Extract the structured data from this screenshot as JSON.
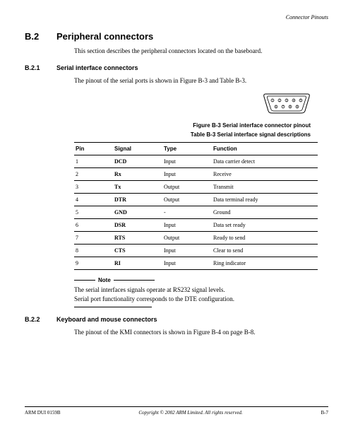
{
  "header": {
    "section_name": "Connector Pinouts"
  },
  "section": {
    "number": "B.2",
    "title": "Peripheral connectors",
    "intro": "This section describes the peripheral connectors located on the baseboard."
  },
  "sub1": {
    "number": "B.2.1",
    "title": "Serial interface connectors",
    "intro": "The pinout of the serial ports is shown in Figure B-3 and Table B-3.",
    "figure_caption": "Figure B-3 Serial interface connector pinout",
    "table_caption": "Table B-3 Serial interface signal descriptions",
    "table": {
      "columns": [
        "Pin",
        "Signal",
        "Type",
        "Function"
      ],
      "rows": [
        [
          "1",
          "DCD",
          "Input",
          "Data carrier detect"
        ],
        [
          "2",
          "Rx",
          "Input",
          "Receive"
        ],
        [
          "3",
          "Tx",
          "Output",
          "Transmit"
        ],
        [
          "4",
          "DTR",
          "Output",
          "Data terminal ready"
        ],
        [
          "5",
          "GND",
          "-",
          "Ground"
        ],
        [
          "6",
          "DSR",
          "Input",
          "Data set ready"
        ],
        [
          "7",
          "RTS",
          "Output",
          "Ready to send"
        ],
        [
          "8",
          "CTS",
          "Input",
          "Clear to send"
        ],
        [
          "9",
          "RI",
          "Input",
          "Ring indicator"
        ]
      ]
    },
    "note": {
      "label": "Note",
      "line1": "The serial interfaces signals operate at RS232 signal levels.",
      "line2": "Serial port functionality corresponds to the DTE configuration."
    }
  },
  "sub2": {
    "number": "B.2.2",
    "title": "Keyboard and mouse connectors",
    "intro": "The pinout of the KMI connectors is shown in Figure B-4 on page B-8."
  },
  "footer": {
    "left": "ARM DUI 0159B",
    "center": "Copyright © 2002 ARM Limited. All rights reserved.",
    "right": "B-7"
  },
  "connector_svg": {
    "width": 68,
    "height": 34,
    "stroke": "#000000",
    "pin_labels": [
      "1",
      "2",
      "3",
      "4",
      "5",
      "6",
      "7",
      "8",
      "9"
    ],
    "pin_label_fontsize": 4
  }
}
